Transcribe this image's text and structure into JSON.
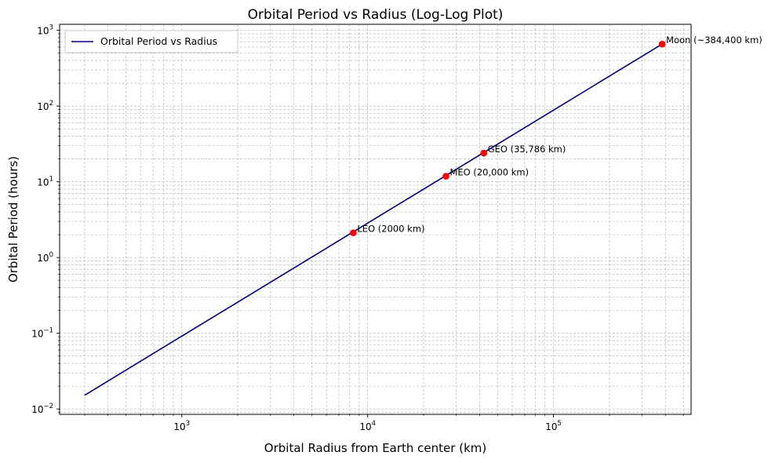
{
  "chart_data": {
    "type": "line",
    "title": "Orbital Period vs Radius (Log-Log Plot)",
    "xlabel": "Orbital Radius from Earth center (km)",
    "ylabel": "Orbital Period (hours)",
    "xscale": "log",
    "yscale": "log",
    "xlim": [
      220,
      550000
    ],
    "ylim": [
      0.0085,
      1200
    ],
    "x_ticks": [
      {
        "value": 1000,
        "base": "10",
        "exp": "3"
      },
      {
        "value": 10000,
        "base": "10",
        "exp": "4"
      },
      {
        "value": 100000,
        "base": "10",
        "exp": "5"
      }
    ],
    "y_ticks": [
      {
        "value": 0.01,
        "base": "10",
        "exp": "−2"
      },
      {
        "value": 0.1,
        "base": "10",
        "exp": "−1"
      },
      {
        "value": 1,
        "base": "10",
        "exp": "0"
      },
      {
        "value": 10,
        "base": "10",
        "exp": "1"
      },
      {
        "value": 100,
        "base": "10",
        "exp": "2"
      },
      {
        "value": 1000,
        "base": "10",
        "exp": "3"
      }
    ],
    "grid": true,
    "legend_position": "top-left",
    "series": [
      {
        "name": "Orbital Period vs Radius",
        "color": "#000080",
        "x": [
          300,
          384400
        ],
        "y": [
          0.0152,
          658
        ]
      }
    ],
    "points": [
      {
        "label": "LEO (2000 km)",
        "x": 8371,
        "y": 2.12
      },
      {
        "label": "MEO (20,000 km)",
        "x": 26371,
        "y": 11.84
      },
      {
        "label": "GEO (35,786 km)",
        "x": 42157,
        "y": 23.93
      },
      {
        "label": "Moon (~384,400 km)",
        "x": 384400,
        "y": 658
      }
    ],
    "point_color": "#ff0000"
  }
}
